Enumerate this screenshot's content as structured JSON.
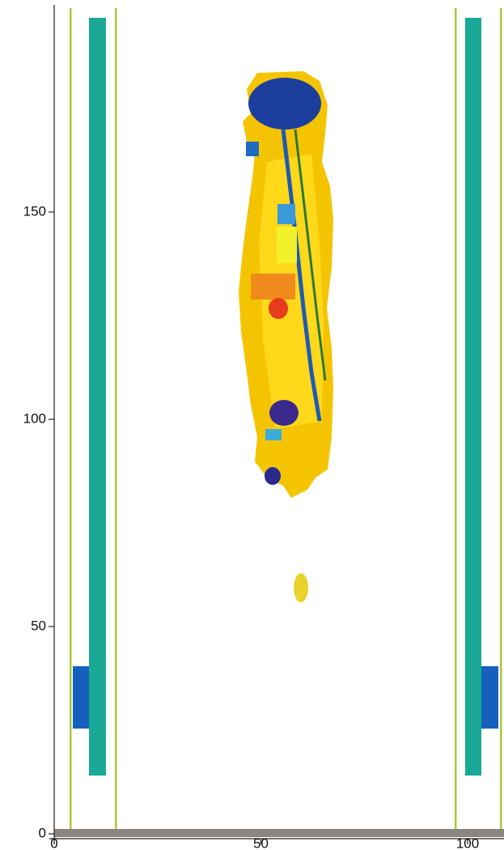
{
  "chart_data": {
    "type": "geometry",
    "xlim": [
      0,
      108.8
    ],
    "ylim": [
      0,
      199.6
    ],
    "xticks": [
      0,
      50,
      100
    ],
    "yticks": [
      0,
      50,
      100,
      150
    ]
  }
}
